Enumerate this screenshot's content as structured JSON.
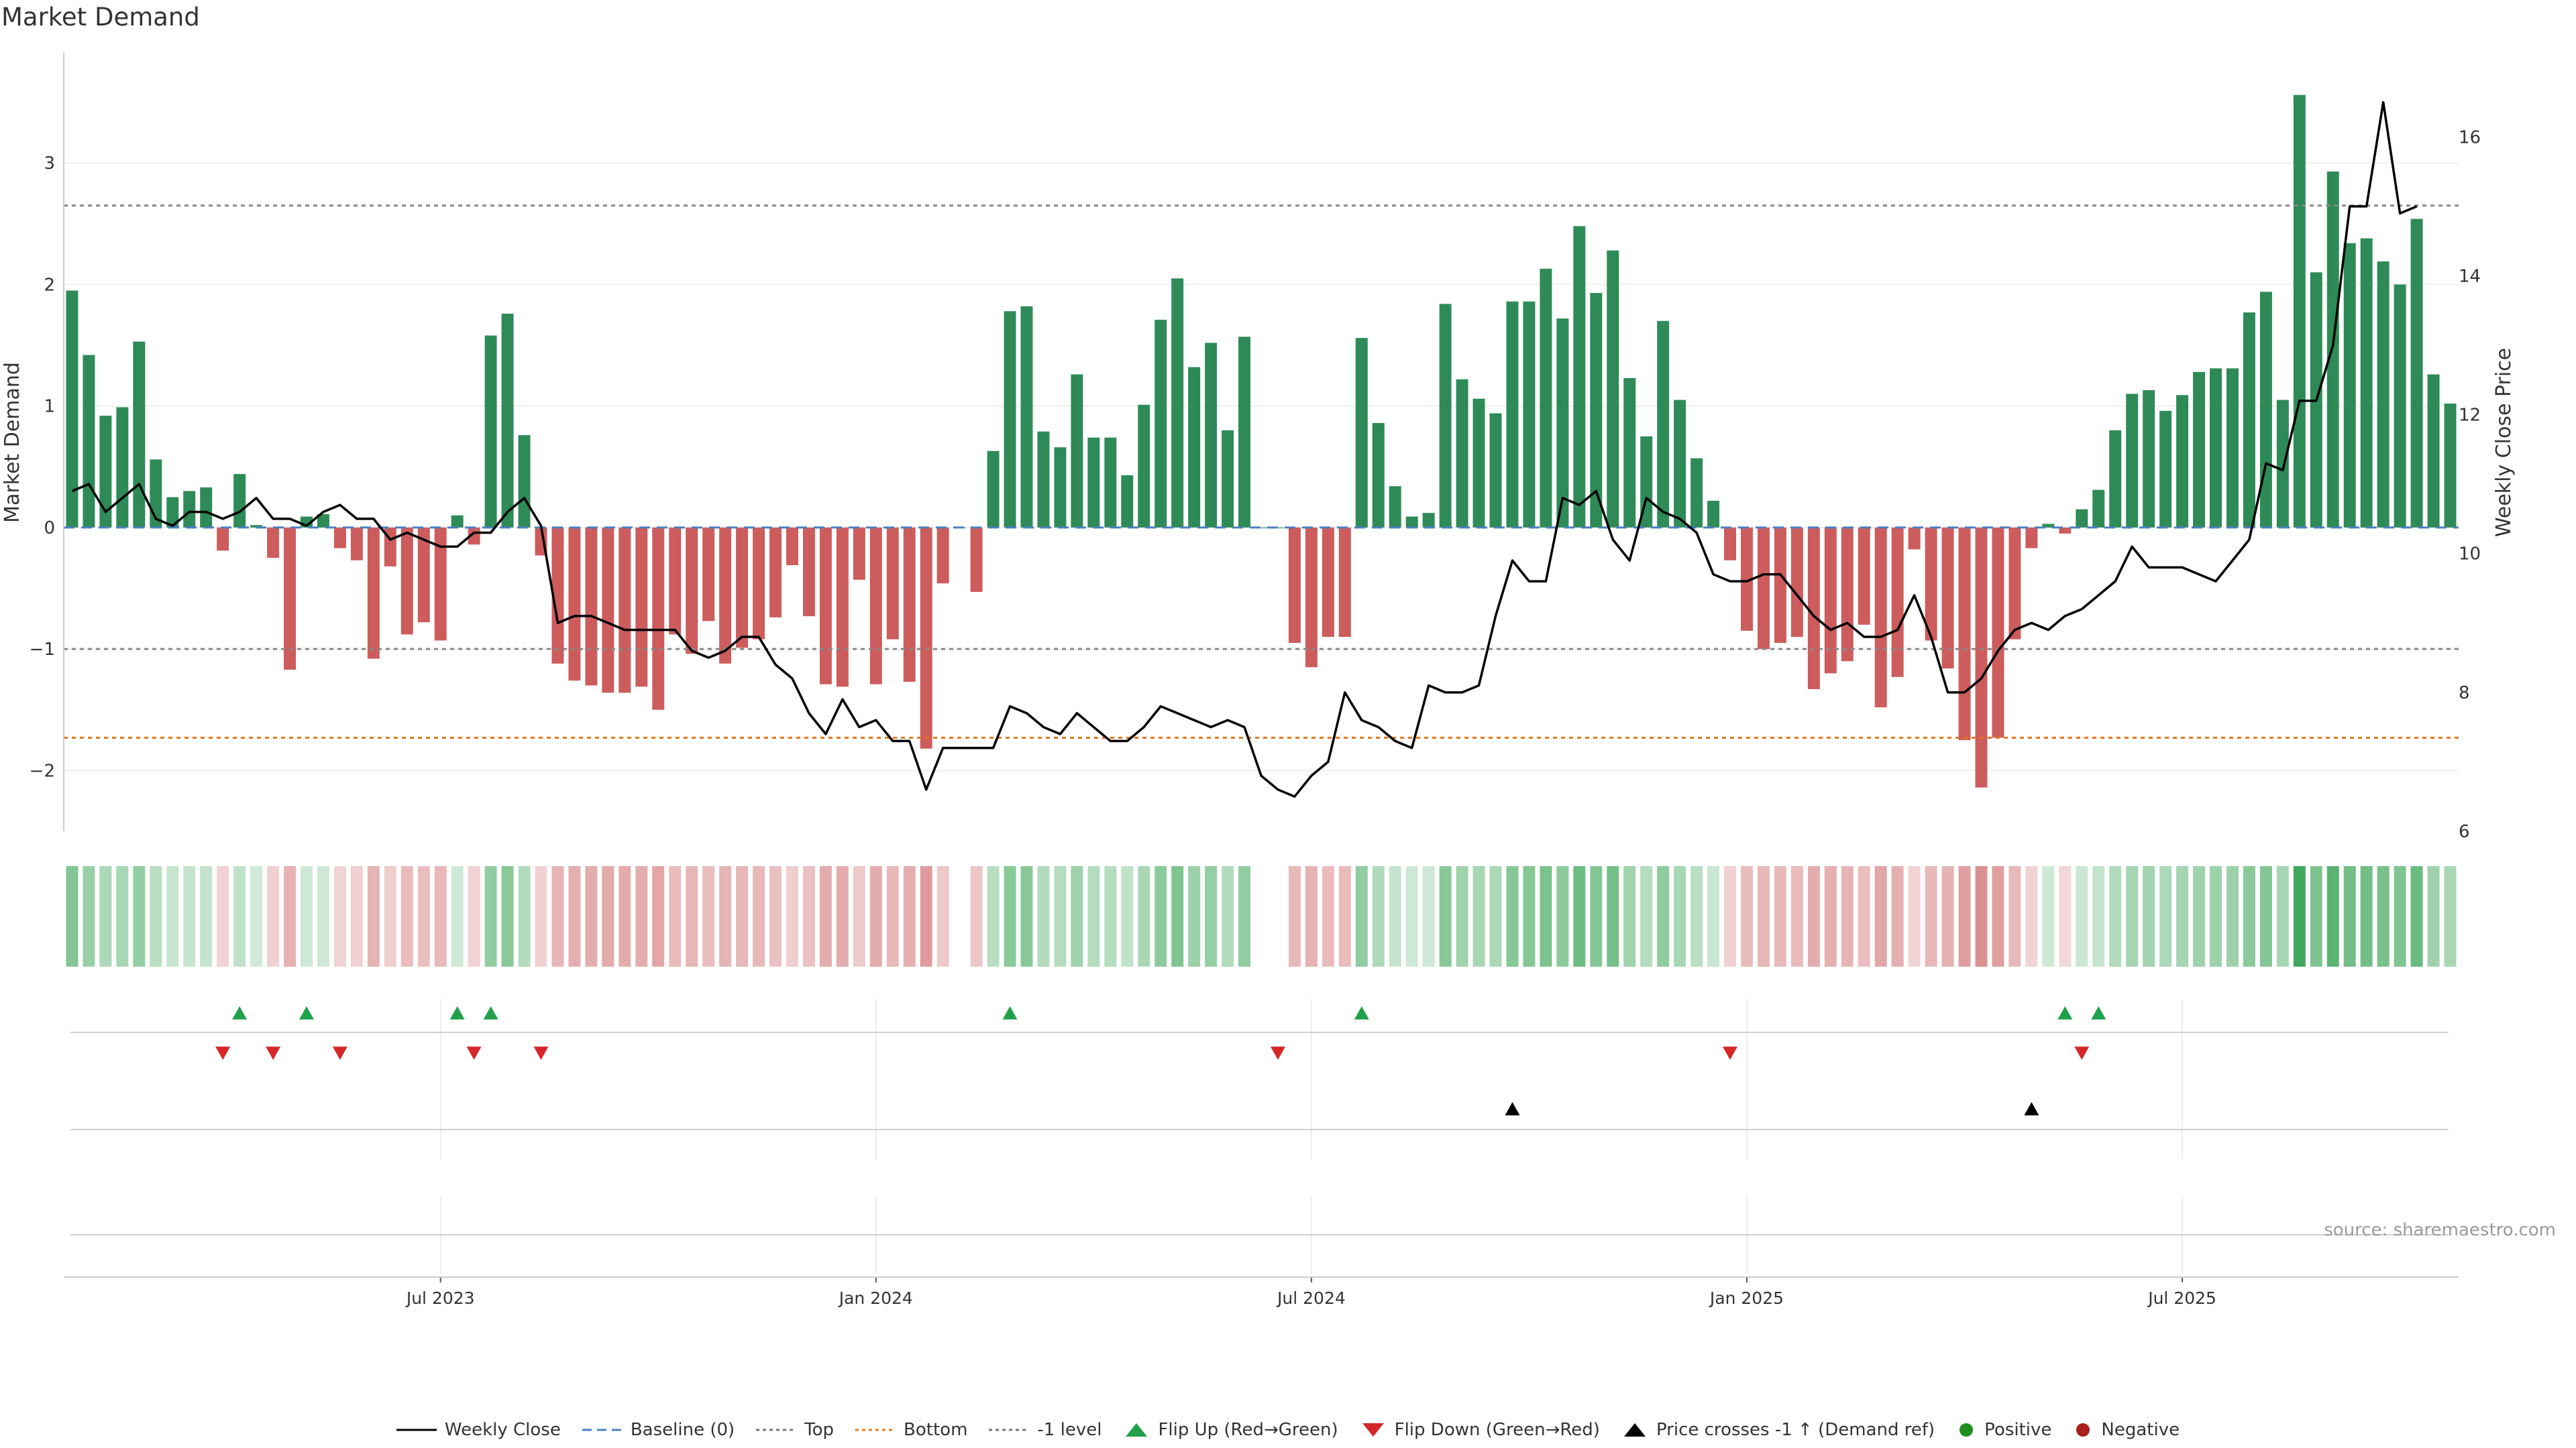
{
  "chart_data": {
    "type": "bar+line",
    "title": "Market Demand",
    "ylabel_left": "Market Demand",
    "ylabel_right": "Weekly Close Price",
    "ylim_left": [
      -2.5,
      3.9
    ],
    "ylim_right": [
      6,
      17.2
    ],
    "yticks_left": [
      {
        "v": 3,
        "label": "3"
      },
      {
        "v": 2,
        "label": "2"
      },
      {
        "v": 1,
        "label": "1"
      },
      {
        "v": 0,
        "label": "0"
      },
      {
        "v": -1,
        "label": "−1"
      },
      {
        "v": -2,
        "label": "−2"
      }
    ],
    "yticks_right": [
      {
        "v": 16,
        "label": "16"
      },
      {
        "v": 14,
        "label": "14"
      },
      {
        "v": 12,
        "label": "12"
      },
      {
        "v": 10,
        "label": "10"
      },
      {
        "v": 8,
        "label": "8"
      },
      {
        "v": 6,
        "label": "6"
      }
    ],
    "xticks": [
      {
        "i": 22,
        "label": "Jul 2023"
      },
      {
        "i": 48,
        "label": "Jan 2024"
      },
      {
        "i": 74,
        "label": "Jul 2024"
      },
      {
        "i": 100,
        "label": "Jan 2025"
      },
      {
        "i": 126,
        "label": "Jul 2025"
      }
    ],
    "reference_lines": {
      "top": 2.65,
      "bottom": -1.73,
      "minus_one": -1.0,
      "baseline": 0
    },
    "demand": [
      1.95,
      1.42,
      0.92,
      0.99,
      1.53,
      0.56,
      0.25,
      0.3,
      0.33,
      -0.19,
      0.44,
      0.02,
      -0.25,
      -1.17,
      0.09,
      0.11,
      -0.17,
      -0.27,
      -1.08,
      -0.32,
      -0.88,
      -0.78,
      -0.93,
      0.1,
      -0.14,
      1.58,
      1.76,
      0.76,
      -0.23,
      -1.12,
      -1.26,
      -1.3,
      -1.36,
      -1.36,
      -1.31,
      -1.5,
      -0.88,
      -1.04,
      -0.77,
      -1.12,
      -0.99,
      -0.92,
      -0.74,
      -0.31,
      -0.73,
      -1.29,
      -1.31,
      -0.43,
      -1.29,
      -0.92,
      -1.27,
      -1.82,
      -0.46,
      0,
      -0.53,
      0.63,
      1.78,
      1.82,
      0.79,
      0.66,
      1.26,
      0.74,
      0.74,
      0.43,
      1.01,
      1.71,
      2.05,
      1.32,
      1.52,
      0.8,
      1.57,
      0,
      0,
      -0.95,
      -1.15,
      -0.9,
      -0.9,
      1.56,
      0.86,
      0.34,
      0.09,
      0.12,
      1.84,
      1.22,
      1.06,
      0.94,
      1.86,
      1.86,
      2.13,
      1.72,
      2.48,
      1.93,
      2.28,
      1.23,
      0.75,
      1.7,
      1.05,
      0.57,
      0.22,
      -0.27,
      -0.85,
      -1.0,
      -0.95,
      -0.9,
      -1.33,
      -1.2,
      -1.1,
      -0.8,
      -1.48,
      -1.23,
      -0.18,
      -0.93,
      -1.16,
      -1.75,
      -2.14,
      -1.73,
      -0.92,
      -0.17,
      0.03,
      -0.05,
      0.15,
      0.31,
      0.8,
      1.1,
      1.13,
      0.96,
      1.09,
      1.28,
      1.31,
      1.31,
      1.77,
      1.94,
      1.05,
      3.56,
      2.1,
      2.93,
      2.34,
      2.38,
      2.19,
      2.0,
      2.54,
      1.26,
      1.02
    ],
    "price": [
      10.9,
      11.0,
      10.6,
      10.8,
      11.0,
      10.5,
      10.4,
      10.6,
      10.6,
      10.5,
      10.6,
      10.8,
      10.5,
      10.5,
      10.4,
      10.6,
      10.7,
      10.5,
      10.5,
      10.2,
      10.3,
      10.2,
      10.1,
      10.1,
      10.3,
      10.3,
      10.6,
      10.8,
      10.4,
      9.0,
      9.1,
      9.1,
      9.0,
      8.9,
      8.9,
      8.9,
      8.9,
      8.6,
      8.5,
      8.6,
      8.8,
      8.8,
      8.4,
      8.2,
      7.7,
      7.4,
      7.9,
      7.5,
      7.6,
      7.3,
      7.3,
      6.6,
      7.2,
      7.2,
      7.2,
      7.2,
      7.8,
      7.7,
      7.5,
      7.4,
      7.7,
      7.5,
      7.3,
      7.3,
      7.5,
      7.8,
      7.7,
      7.6,
      7.5,
      7.6,
      7.5,
      6.8,
      6.6,
      6.5,
      6.8,
      7.0,
      8.0,
      7.6,
      7.5,
      7.3,
      7.2,
      8.1,
      8.0,
      8.0,
      8.1,
      9.1,
      9.9,
      9.6,
      9.6,
      10.8,
      10.7,
      10.9,
      10.2,
      9.9,
      10.8,
      10.6,
      10.5,
      10.3,
      9.7,
      9.6,
      9.6,
      9.7,
      9.7,
      9.4,
      9.1,
      8.9,
      9.0,
      8.8,
      8.8,
      8.9,
      9.4,
      8.8,
      8.0,
      8.0,
      8.2,
      8.6,
      8.9,
      9.0,
      8.9,
      9.1,
      9.2,
      9.4,
      9.6,
      10.1,
      9.8,
      9.8,
      9.8,
      9.7,
      9.6,
      9.9,
      10.2,
      11.3,
      11.2,
      12.2,
      12.2,
      13.0,
      15.0,
      15.0,
      16.5,
      14.9,
      15.0
    ],
    "flip_up_indices": [
      10,
      14,
      23,
      25,
      56,
      77,
      119,
      121
    ],
    "flip_down_indices": [
      9,
      12,
      16,
      24,
      28,
      72,
      99,
      120
    ],
    "price_cross_indices": [
      86,
      117
    ],
    "legend": [
      "Weekly Close",
      "Baseline (0)",
      "Top",
      "Bottom",
      "-1 level",
      "Flip Up (Red→Green)",
      "Flip Down (Green→Red)",
      "Price crosses -1 ↑ (Demand ref)",
      "Positive",
      "Negative"
    ]
  },
  "colors": {
    "positive_bar": "#2e8b57",
    "negative_bar": "#cd5c5c",
    "price_line": "#000000",
    "baseline": "#4a7fc1",
    "top_line": "#888888",
    "bottom_line": "#e07b20",
    "flip_up": "#21a04a",
    "flip_down": "#d62728",
    "cross": "#000000",
    "positive_dot": "#1e8f1e",
    "negative_dot": "#aa1e1e"
  },
  "source": "source: sharemaestro.com"
}
